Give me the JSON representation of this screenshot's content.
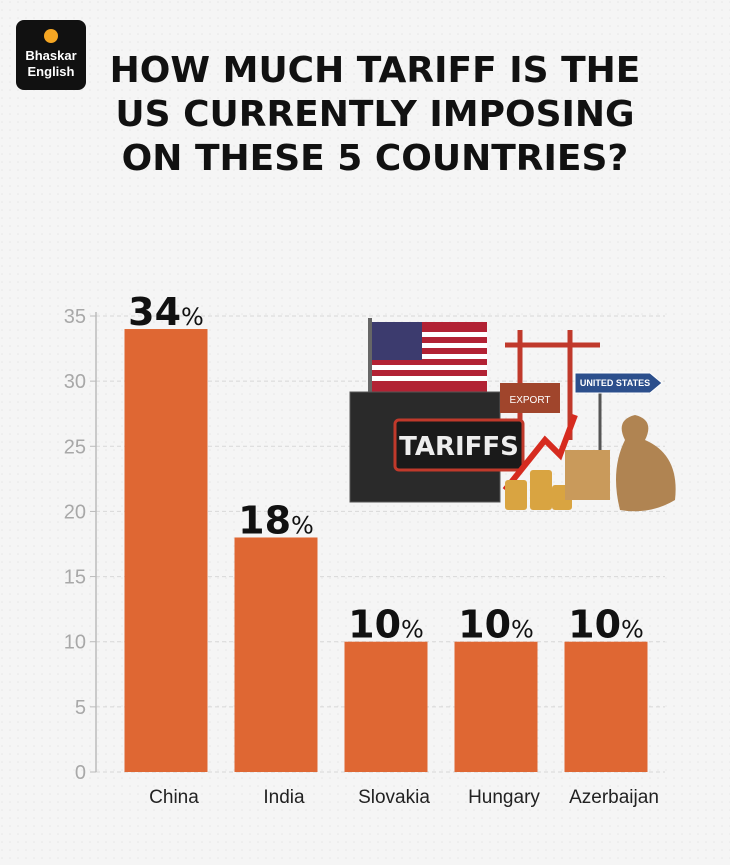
{
  "logo": {
    "lines": [
      "Bhaskar",
      "English"
    ]
  },
  "illustration": {
    "container_text": "TARIFFS",
    "box_text": "EXPORT",
    "sign_text": "UNITED STATES"
  },
  "chart_data": {
    "type": "bar",
    "title": [
      "HOW MUCH TARIFF IS THE",
      "US CURRENTLY IMPOSING",
      "ON THESE 5 COUNTRIES?"
    ],
    "categories": [
      "China",
      "India",
      "Slovakia",
      "Hungary",
      "Azerbaijan"
    ],
    "values": [
      34,
      18,
      10,
      10,
      10
    ],
    "value_labels": [
      "34%",
      "18%",
      "10%",
      "10%",
      "10%"
    ],
    "color": "#df6733",
    "ylim": [
      0,
      35
    ],
    "yticks": [
      0,
      5,
      10,
      15,
      20,
      25,
      30,
      35
    ],
    "grid": true
  }
}
